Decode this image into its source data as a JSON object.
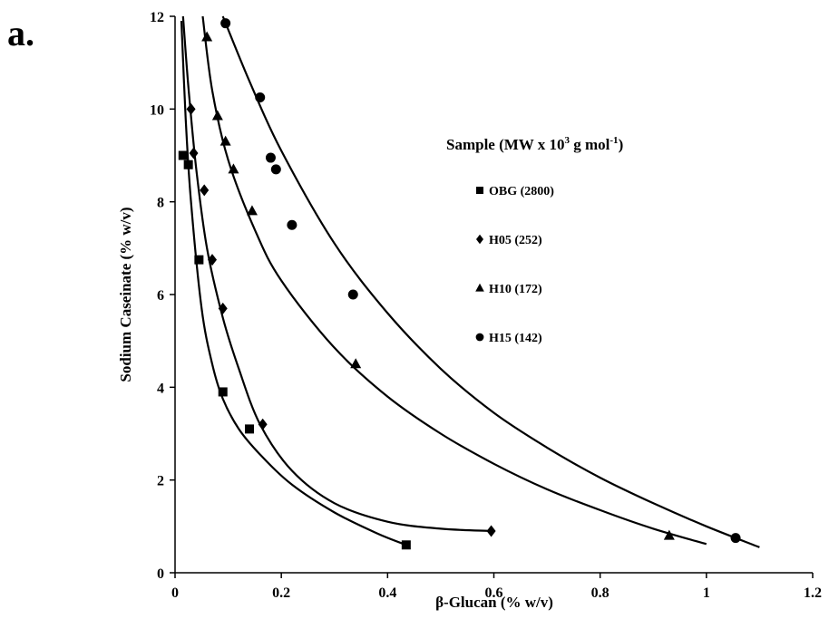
{
  "panel_label": "a.",
  "chart_data": {
    "type": "scatter",
    "xlabel": "β-Glucan (% w/v)",
    "ylabel": "Sodium Caseinate (% w/v)",
    "xlim": [
      0,
      1.2
    ],
    "ylim": [
      0,
      12
    ],
    "xticks": [
      "0",
      "0.2",
      "0.4",
      "0.6",
      "0.8",
      "1",
      "1.2"
    ],
    "yticks": [
      "0",
      "2",
      "4",
      "6",
      "8",
      "10",
      "12"
    ],
    "grid": false,
    "legend": {
      "title_main": "Sample (MW x 10",
      "title_sup1": "3",
      "title_mid": " g mol",
      "title_sup2": "-1",
      "title_end": ")",
      "placement": "right"
    },
    "series": [
      {
        "name": "OBG (2800)",
        "marker": "square",
        "points": [
          [
            0.015,
            9.0
          ],
          [
            0.025,
            8.8
          ],
          [
            0.045,
            6.75
          ],
          [
            0.09,
            3.9
          ],
          [
            0.14,
            3.1
          ],
          [
            0.435,
            0.6
          ]
        ],
        "curve": [
          [
            0.012,
            11.9
          ],
          [
            0.02,
            9.8
          ],
          [
            0.03,
            8.0
          ],
          [
            0.05,
            5.7
          ],
          [
            0.07,
            4.5
          ],
          [
            0.09,
            3.75
          ],
          [
            0.12,
            3.1
          ],
          [
            0.16,
            2.55
          ],
          [
            0.22,
            1.9
          ],
          [
            0.3,
            1.3
          ],
          [
            0.38,
            0.85
          ],
          [
            0.435,
            0.6
          ]
        ]
      },
      {
        "name": "H05 (252)",
        "marker": "diamond",
        "points": [
          [
            0.03,
            10.0
          ],
          [
            0.035,
            9.05
          ],
          [
            0.055,
            8.25
          ],
          [
            0.07,
            6.75
          ],
          [
            0.09,
            5.7
          ],
          [
            0.165,
            3.2
          ],
          [
            0.595,
            0.9
          ]
        ],
        "curve": [
          [
            0.015,
            12.0
          ],
          [
            0.025,
            10.5
          ],
          [
            0.04,
            8.7
          ],
          [
            0.06,
            7.0
          ],
          [
            0.09,
            5.5
          ],
          [
            0.12,
            4.4
          ],
          [
            0.16,
            3.2
          ],
          [
            0.22,
            2.2
          ],
          [
            0.3,
            1.5
          ],
          [
            0.4,
            1.1
          ],
          [
            0.5,
            0.95
          ],
          [
            0.595,
            0.9
          ]
        ]
      },
      {
        "name": "H10 (172)",
        "marker": "triangle",
        "points": [
          [
            0.06,
            11.55
          ],
          [
            0.08,
            9.85
          ],
          [
            0.095,
            9.3
          ],
          [
            0.11,
            8.7
          ],
          [
            0.145,
            7.8
          ],
          [
            0.34,
            4.5
          ],
          [
            0.93,
            0.8
          ]
        ],
        "curve": [
          [
            0.052,
            12.0
          ],
          [
            0.07,
            10.4
          ],
          [
            0.1,
            8.9
          ],
          [
            0.15,
            7.4
          ],
          [
            0.2,
            6.3
          ],
          [
            0.3,
            4.85
          ],
          [
            0.4,
            3.8
          ],
          [
            0.5,
            3.0
          ],
          [
            0.6,
            2.35
          ],
          [
            0.7,
            1.8
          ],
          [
            0.8,
            1.35
          ],
          [
            0.9,
            0.95
          ],
          [
            1.0,
            0.62
          ]
        ]
      },
      {
        "name": "H15 (142)",
        "marker": "circle",
        "points": [
          [
            0.095,
            11.85
          ],
          [
            0.16,
            10.25
          ],
          [
            0.18,
            8.95
          ],
          [
            0.19,
            8.7
          ],
          [
            0.22,
            7.5
          ],
          [
            0.335,
            6.0
          ],
          [
            1.055,
            0.75
          ]
        ],
        "curve": [
          [
            0.09,
            12.0
          ],
          [
            0.14,
            10.6
          ],
          [
            0.2,
            9.1
          ],
          [
            0.3,
            7.1
          ],
          [
            0.4,
            5.6
          ],
          [
            0.5,
            4.4
          ],
          [
            0.6,
            3.45
          ],
          [
            0.7,
            2.7
          ],
          [
            0.8,
            2.05
          ],
          [
            0.9,
            1.5
          ],
          [
            1.0,
            1.0
          ],
          [
            1.1,
            0.55
          ]
        ]
      }
    ]
  }
}
